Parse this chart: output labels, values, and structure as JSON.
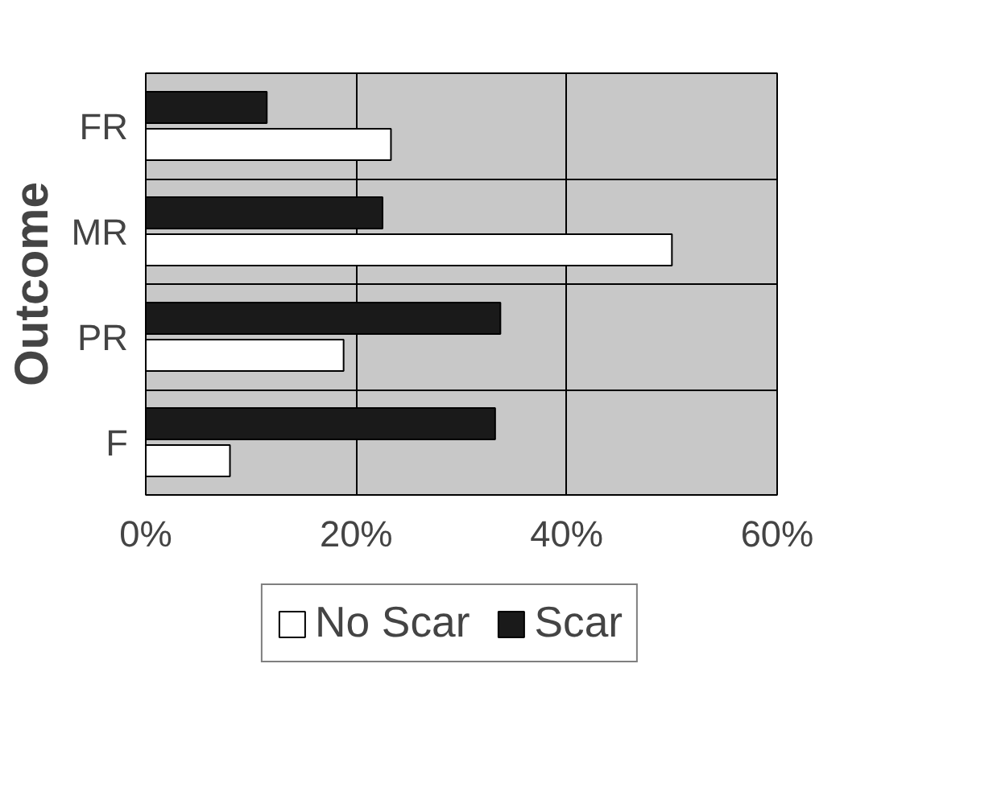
{
  "chart_data": {
    "type": "bar",
    "orientation": "horizontal",
    "ylabel": "Outcome",
    "categories": [
      "FR",
      "MR",
      "PR",
      "F"
    ],
    "series": [
      {
        "name": "No Scar",
        "color": "#ffffff",
        "values": [
          23.3,
          50,
          18.8,
          8
        ]
      },
      {
        "name": "Scar",
        "color": "#1a1a1a",
        "values": [
          11.5,
          22.5,
          33.7,
          33.2
        ]
      }
    ],
    "xlim": [
      0,
      60
    ],
    "xticks": [
      {
        "value": 0,
        "label": "0%"
      },
      {
        "value": 20,
        "label": "20%"
      },
      {
        "value": 40,
        "label": "40%"
      },
      {
        "value": 60,
        "label": "60%"
      }
    ],
    "grid": true,
    "legend": "bottom"
  }
}
